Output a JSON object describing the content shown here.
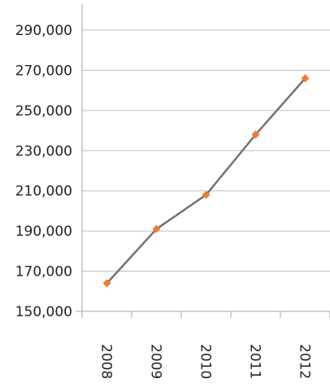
{
  "chart_data": {
    "type": "line",
    "title": "",
    "xlabel": "",
    "ylabel": "",
    "categories": [
      "2008",
      "2009",
      "2010",
      "2011",
      "2012"
    ],
    "series": [
      {
        "values": [
          164000,
          191000,
          208000,
          238000,
          266000
        ]
      }
    ],
    "ylim": [
      150000,
      290000
    ],
    "yticks": [
      "150,000",
      "170,000",
      "190,000",
      "210,000",
      "230,000",
      "250,000",
      "270,000",
      "290,000"
    ],
    "grid": "horizontal",
    "legend": "none",
    "colors": {
      "line": "#767171",
      "marker": "#ED7D31",
      "grid": "#BFBFBF",
      "axis": "#A6A6A6"
    }
  }
}
